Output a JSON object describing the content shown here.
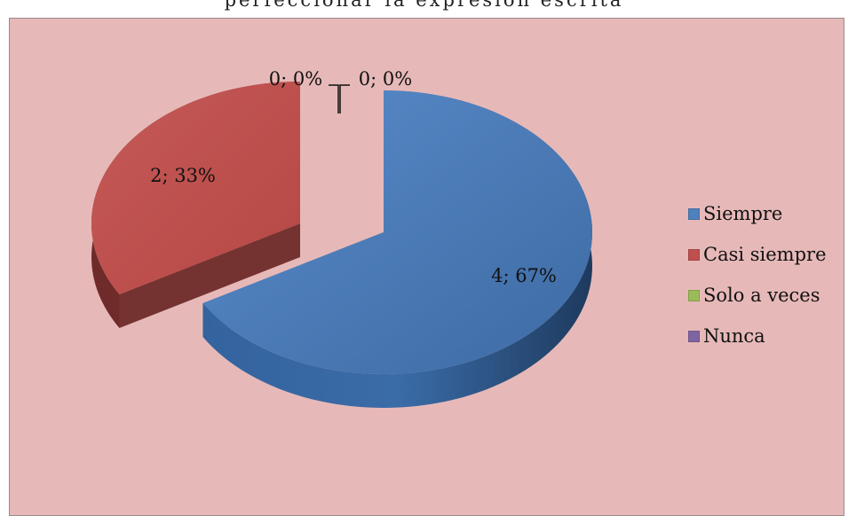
{
  "chart_data": {
    "type": "pie",
    "title": "perfeccionar la expresión escrita",
    "categories": [
      "Siempre",
      "Casi siempre",
      "Solo a veces",
      "Nunca"
    ],
    "values": [
      4,
      2,
      0,
      0
    ],
    "percentages": [
      "67%",
      "33%",
      "0%",
      "0%"
    ],
    "data_labels": [
      "4; 67%",
      "2; 33%",
      "0; 0%",
      "0; 0%"
    ],
    "colors": [
      "#4f81bd",
      "#c0504d",
      "#9bbb59",
      "#8064a2"
    ],
    "legend_position": "right",
    "style": "3d-exploded"
  }
}
